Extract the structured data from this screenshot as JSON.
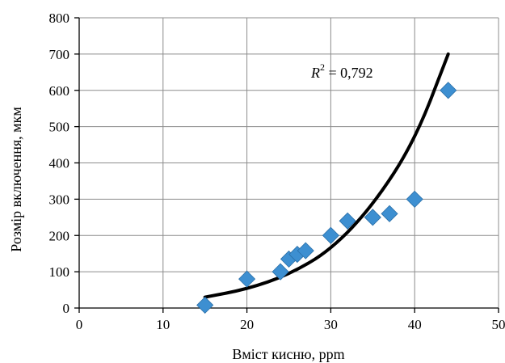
{
  "chart_data": {
    "type": "scatter",
    "title": "",
    "xlabel": "Вміст кисню, ppm",
    "ylabel": "Розмір включення, мкм",
    "xlim": [
      0,
      50
    ],
    "ylim": [
      0,
      800
    ],
    "x_ticks": [
      "0",
      "10",
      "20",
      "30",
      "40",
      "50"
    ],
    "y_ticks": [
      "0",
      "100",
      "200",
      "300",
      "400",
      "500",
      "600",
      "700",
      "800"
    ],
    "grid": true,
    "legend": "none",
    "series": [
      {
        "marker": "diamond",
        "color": "#3d8fd1",
        "points": [
          {
            "x": 15,
            "y": 8
          },
          {
            "x": 20,
            "y": 80
          },
          {
            "x": 24,
            "y": 100
          },
          {
            "x": 25,
            "y": 135
          },
          {
            "x": 26,
            "y": 148
          },
          {
            "x": 27,
            "y": 158
          },
          {
            "x": 30,
            "y": 200
          },
          {
            "x": 32,
            "y": 240
          },
          {
            "x": 35,
            "y": 250
          },
          {
            "x": 37,
            "y": 260
          },
          {
            "x": 40,
            "y": 300
          },
          {
            "x": 44,
            "y": 600
          }
        ]
      }
    ],
    "trendline": {
      "type": "exponential",
      "color": "#000000",
      "x_range": [
        15,
        44
      ],
      "points": [
        {
          "x": 15,
          "y": 30
        },
        {
          "x": 20,
          "y": 52
        },
        {
          "x": 25,
          "y": 92
        },
        {
          "x": 30,
          "y": 160
        },
        {
          "x": 35,
          "y": 282
        },
        {
          "x": 40,
          "y": 460
        },
        {
          "x": 44,
          "y": 700
        }
      ]
    },
    "annotation": {
      "r_label": "R",
      "r_sup": "2",
      "text": " = 0,792"
    }
  }
}
